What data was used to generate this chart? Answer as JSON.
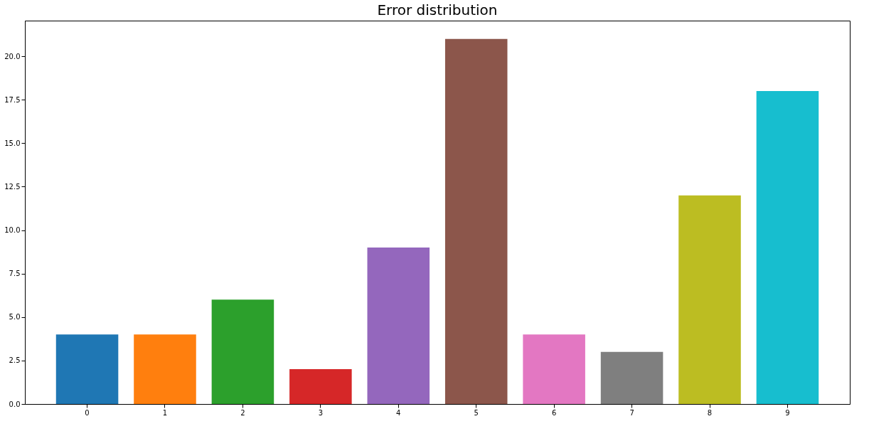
{
  "chart_data": {
    "type": "bar",
    "title": "Error distribution",
    "categories": [
      "0",
      "1",
      "2",
      "3",
      "4",
      "5",
      "6",
      "7",
      "8",
      "9"
    ],
    "values": [
      4,
      4,
      6,
      2,
      9,
      21,
      4,
      3,
      12,
      18
    ],
    "colors": [
      "#1f77b4",
      "#ff7f0e",
      "#2ca02c",
      "#d62728",
      "#9467bd",
      "#8c564b",
      "#e377c2",
      "#7f7f7f",
      "#bcbd22",
      "#17becf"
    ],
    "ylim": [
      0,
      22.05
    ],
    "yticks": [
      {
        "value": 0,
        "label": "0.0"
      },
      2.5,
      {
        "value": 5,
        "label": "5.0"
      },
      7.5,
      {
        "value": 10,
        "label": "10.0"
      },
      12.5,
      {
        "value": 15,
        "label": "15.0"
      },
      17.5,
      {
        "value": 20,
        "label": "20.0"
      }
    ],
    "grid": false,
    "legend": false
  }
}
